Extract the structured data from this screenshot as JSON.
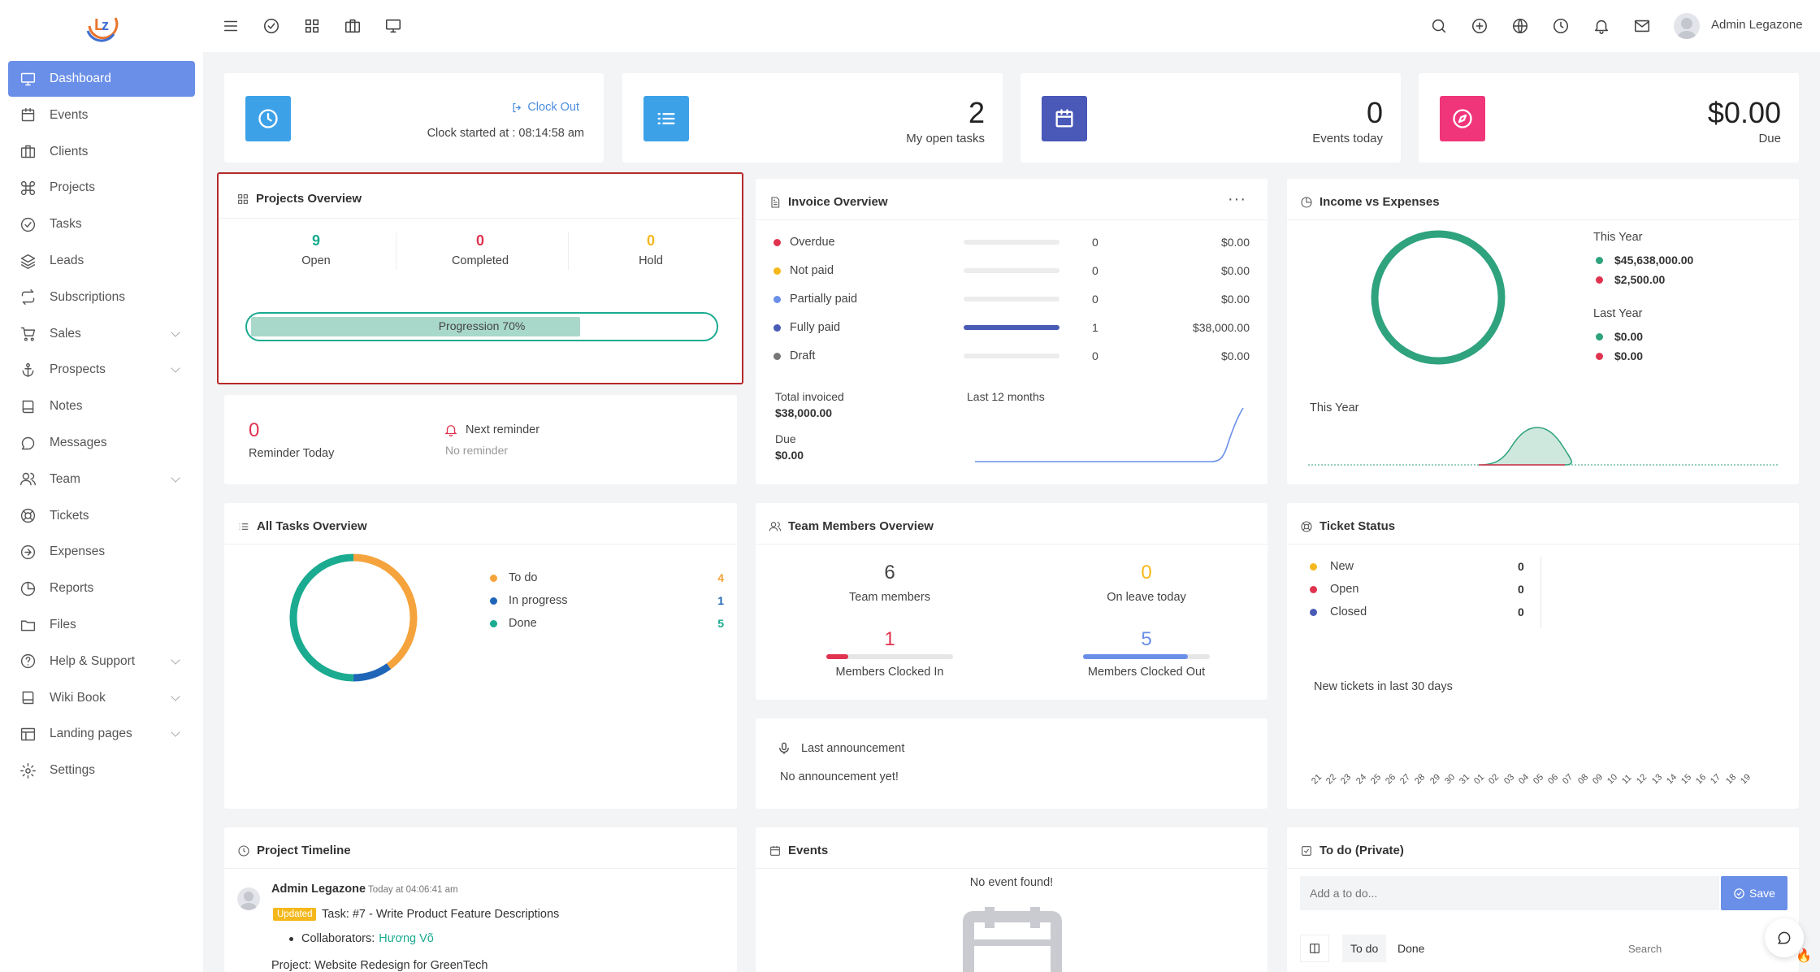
{
  "app": {
    "user": "Admin Legazone"
  },
  "sidebar": {
    "items": [
      {
        "label": "Dashboard",
        "icon": "monitor-icon",
        "active": true
      },
      {
        "label": "Events",
        "icon": "calendar-icon"
      },
      {
        "label": "Clients",
        "icon": "briefcase-icon"
      },
      {
        "label": "Projects",
        "icon": "command-icon"
      },
      {
        "label": "Tasks",
        "icon": "check-circle-icon"
      },
      {
        "label": "Leads",
        "icon": "layers-icon"
      },
      {
        "label": "Subscriptions",
        "icon": "repeat-icon"
      },
      {
        "label": "Sales",
        "icon": "cart-icon",
        "expandable": true
      },
      {
        "label": "Prospects",
        "icon": "anchor-icon",
        "expandable": true
      },
      {
        "label": "Notes",
        "icon": "book-icon"
      },
      {
        "label": "Messages",
        "icon": "message-icon"
      },
      {
        "label": "Team",
        "icon": "users-icon",
        "expandable": true
      },
      {
        "label": "Tickets",
        "icon": "life-buoy-icon"
      },
      {
        "label": "Expenses",
        "icon": "arrow-right-circle-icon"
      },
      {
        "label": "Reports",
        "icon": "pie-chart-icon"
      },
      {
        "label": "Files",
        "icon": "folder-icon"
      },
      {
        "label": "Help & Support",
        "icon": "help-circle-icon",
        "expandable": true
      },
      {
        "label": "Wiki Book",
        "icon": "book-icon",
        "expandable": true
      },
      {
        "label": "Landing pages",
        "icon": "layout-icon",
        "expandable": true
      },
      {
        "label": "Settings",
        "icon": "settings-icon"
      }
    ]
  },
  "stats": {
    "clock": {
      "link": "Clock Out",
      "started": "Clock started at : 08:14:58 am"
    },
    "tasks": {
      "value": "2",
      "label": "My open tasks"
    },
    "events": {
      "value": "0",
      "label": "Events today"
    },
    "due": {
      "value": "$0.00",
      "label": "Due"
    }
  },
  "projects_overview": {
    "title": "Projects Overview",
    "open": "9",
    "open_label": "Open",
    "completed": "0",
    "completed_label": "Completed",
    "hold": "0",
    "hold_label": "Hold",
    "progress_label": "Progression 70%",
    "progress": 0.7
  },
  "reminder": {
    "count": "0",
    "label": "Reminder Today",
    "next_title": "Next reminder",
    "next_value": "No reminder"
  },
  "invoice": {
    "title": "Invoice Overview",
    "rows": [
      {
        "label": "Overdue",
        "color": "#e0334f",
        "count": "0",
        "amount": "$0.00",
        "fill": 0
      },
      {
        "label": "Not paid",
        "color": "#f5b81c",
        "count": "0",
        "amount": "$0.00",
        "fill": 0
      },
      {
        "label": "Partially paid",
        "color": "#6a8fe8",
        "count": "0",
        "amount": "$0.00",
        "fill": 0
      },
      {
        "label": "Fully paid",
        "color": "#4a5bb5",
        "count": "1",
        "amount": "$38,000.00",
        "fill": 1
      },
      {
        "label": "Draft",
        "color": "#777",
        "count": "0",
        "amount": "$0.00",
        "fill": 0
      }
    ],
    "total_label": "Total invoiced",
    "total": "$38,000.00",
    "due_label": "Due",
    "due": "$0.00",
    "last12": "Last 12 months"
  },
  "income": {
    "title": "Income vs Expenses",
    "this_year": "This Year",
    "ty_income": "$45,638,000.00",
    "ty_expense": "$2,500.00",
    "last_year": "Last Year",
    "ly_income": "$0.00",
    "ly_expense": "$0.00",
    "chart_label": "This Year"
  },
  "tasks_overview": {
    "title": "All Tasks Overview",
    "items": [
      {
        "label": "To do",
        "value": "4",
        "color": "#f5a33c"
      },
      {
        "label": "In progress",
        "value": "1",
        "color": "#1f66b8"
      },
      {
        "label": "Done",
        "value": "5",
        "color": "#1aab90"
      }
    ]
  },
  "team": {
    "title": "Team Members Overview",
    "members": "6",
    "members_label": "Team members",
    "leave": "0",
    "leave_label": "On leave today",
    "clocked_in": "1",
    "clocked_in_label": "Members Clocked In",
    "clocked_out": "5",
    "clocked_out_label": "Members Clocked Out",
    "in_fill": 0.17,
    "out_fill": 0.83
  },
  "ticket": {
    "title": "Ticket Status",
    "items": [
      {
        "label": "New",
        "value": "0",
        "color": "#f5b81c"
      },
      {
        "label": "Open",
        "value": "0",
        "color": "#e0334f"
      },
      {
        "label": "Closed",
        "value": "0",
        "color": "#4a5bb5"
      }
    ],
    "chart_label": "New tickets in last 30 days",
    "days": [
      "21",
      "22",
      "23",
      "24",
      "25",
      "26",
      "27",
      "28",
      "29",
      "30",
      "31",
      "01",
      "02",
      "03",
      "04",
      "05",
      "06",
      "07",
      "08",
      "09",
      "10",
      "11",
      "12",
      "13",
      "14",
      "15",
      "16",
      "17",
      "18",
      "19"
    ]
  },
  "announcement": {
    "title": "Last announcement",
    "text": "No announcement yet!"
  },
  "timeline": {
    "title": "Project Timeline",
    "user": "Admin Legazone",
    "time": "Today at 04:06:41 am",
    "badge": "Updated",
    "task": "Task: #7 - Write Product Feature Descriptions",
    "collab_label": "Collaborators:",
    "collab": "Hương Võ",
    "project": "Project: Website Redesign for GreenTech"
  },
  "events": {
    "title": "Events",
    "empty": "No event found!"
  },
  "todo": {
    "title": "To do (Private)",
    "placeholder": "Add a to do...",
    "save": "Save",
    "tab_todo": "To do",
    "tab_done": "Done",
    "search_placeholder": "Search"
  }
}
